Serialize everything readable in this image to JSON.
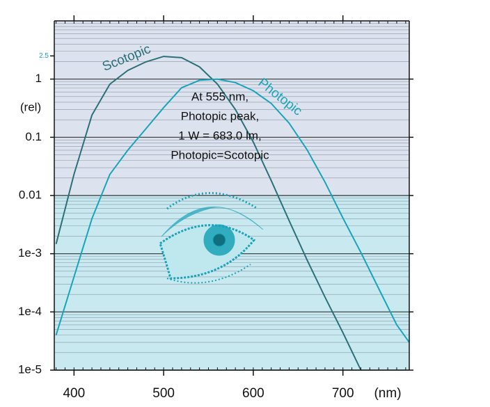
{
  "chart_data": {
    "type": "line",
    "x": [
      380,
      400,
      420,
      440,
      460,
      480,
      500,
      520,
      540,
      560,
      580,
      600,
      620,
      640,
      660,
      680,
      700,
      720,
      740,
      760,
      774
    ],
    "series": [
      {
        "name": "Scotopic",
        "color": "#2b6f78",
        "values": [
          0.00147,
          0.0231,
          0.241,
          0.817,
          1.41,
          1.97,
          2.45,
          2.33,
          1.62,
          0.82,
          0.3,
          0.083,
          0.018,
          0.0037,
          0.00078,
          0.00018,
          4.4e-05,
          1e-05,
          null,
          null,
          null
        ]
      },
      {
        "name": "Photopic",
        "color": "#1aa3b8",
        "values": [
          4e-05,
          0.0004,
          0.004,
          0.023,
          0.06,
          0.139,
          0.323,
          0.71,
          0.954,
          0.995,
          0.87,
          0.631,
          0.381,
          0.175,
          0.061,
          0.017,
          0.0041,
          0.00105,
          0.00025,
          6e-05,
          3e-05
        ]
      }
    ],
    "xlim": [
      378,
      774
    ],
    "xticks": [
      400,
      500,
      600,
      700
    ],
    "ylim": [
      1e-05,
      10
    ],
    "log_y": true,
    "yticks": [
      {
        "value": 1e-05,
        "label": "1e-5"
      },
      {
        "value": 0.0001,
        "label": "1e-4"
      },
      {
        "value": 0.001,
        "label": "1e-3"
      },
      0.01,
      0.1,
      1,
      2.5
    ],
    "ylabel": "(rel)",
    "xlabel": "(nm)",
    "annotation": [
      "At 555 nm,",
      "Photopic peak,",
      "1 W = 683.0 lm,",
      "Photopic=Scotopic"
    ],
    "grid": true
  }
}
